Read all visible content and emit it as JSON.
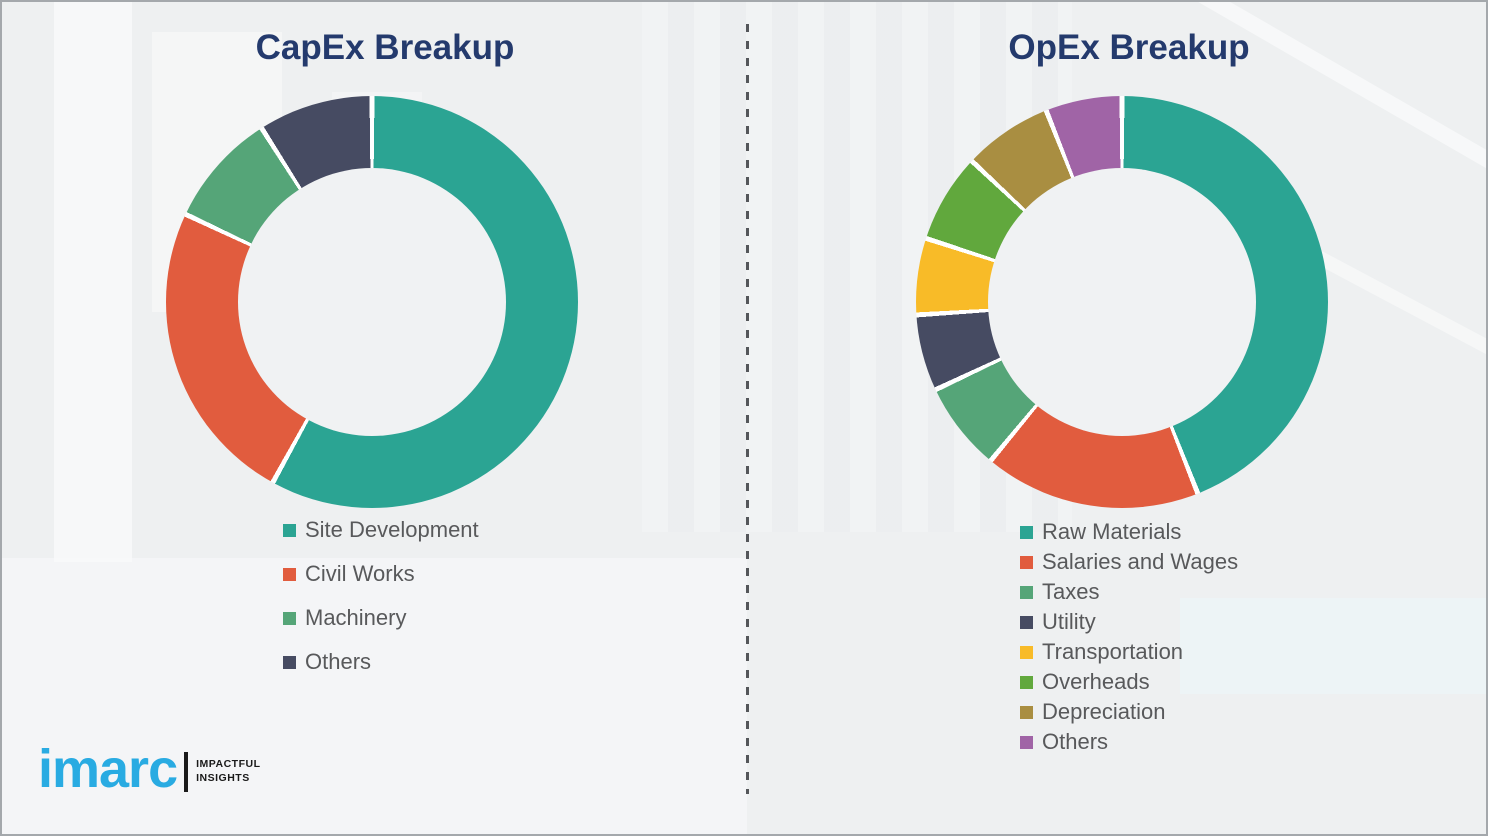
{
  "page": {
    "background_color": "#eef0f1",
    "border_color": "#a4a8ac",
    "divider_color": "#54565a",
    "title_color": "#243a6d",
    "legend_text_color": "#58595b"
  },
  "chart_data": [
    {
      "type": "pie",
      "donut": true,
      "title": "CapEx Breakup",
      "labels": [
        "Site Development",
        "Civil Works",
        "Machinery",
        "Others"
      ],
      "values": [
        58,
        24,
        9,
        9
      ],
      "values_are": "percent_estimated_from_arc_angles",
      "colors": [
        "#2ba493",
        "#e15c3e",
        "#55a578",
        "#464b62"
      ],
      "start_angle_deg": 0,
      "direction": "clockwise",
      "legend_position": "below-chart-left",
      "data_labels_shown": false
    },
    {
      "type": "pie",
      "donut": true,
      "title": "OpEx Breakup",
      "labels": [
        "Raw Materials",
        "Salaries and Wages",
        "Taxes",
        "Utility",
        "Transportation",
        "Overheads",
        "Depreciation",
        "Others"
      ],
      "values": [
        44,
        17,
        7,
        6,
        6,
        7,
        7,
        6
      ],
      "values_are": "percent_estimated_from_arc_angles",
      "colors": [
        "#2ba493",
        "#e15c3e",
        "#55a578",
        "#464b62",
        "#f8bb28",
        "#61a83d",
        "#a98e41",
        "#a064a6"
      ],
      "start_angle_deg": 0,
      "direction": "clockwise",
      "legend_position": "below-chart-left",
      "data_labels_shown": false
    }
  ],
  "logo": {
    "brand": "imarc",
    "tagline_line1": "IMPACTFUL",
    "tagline_line2": "INSIGHTS",
    "brand_color": "#29abe2"
  }
}
